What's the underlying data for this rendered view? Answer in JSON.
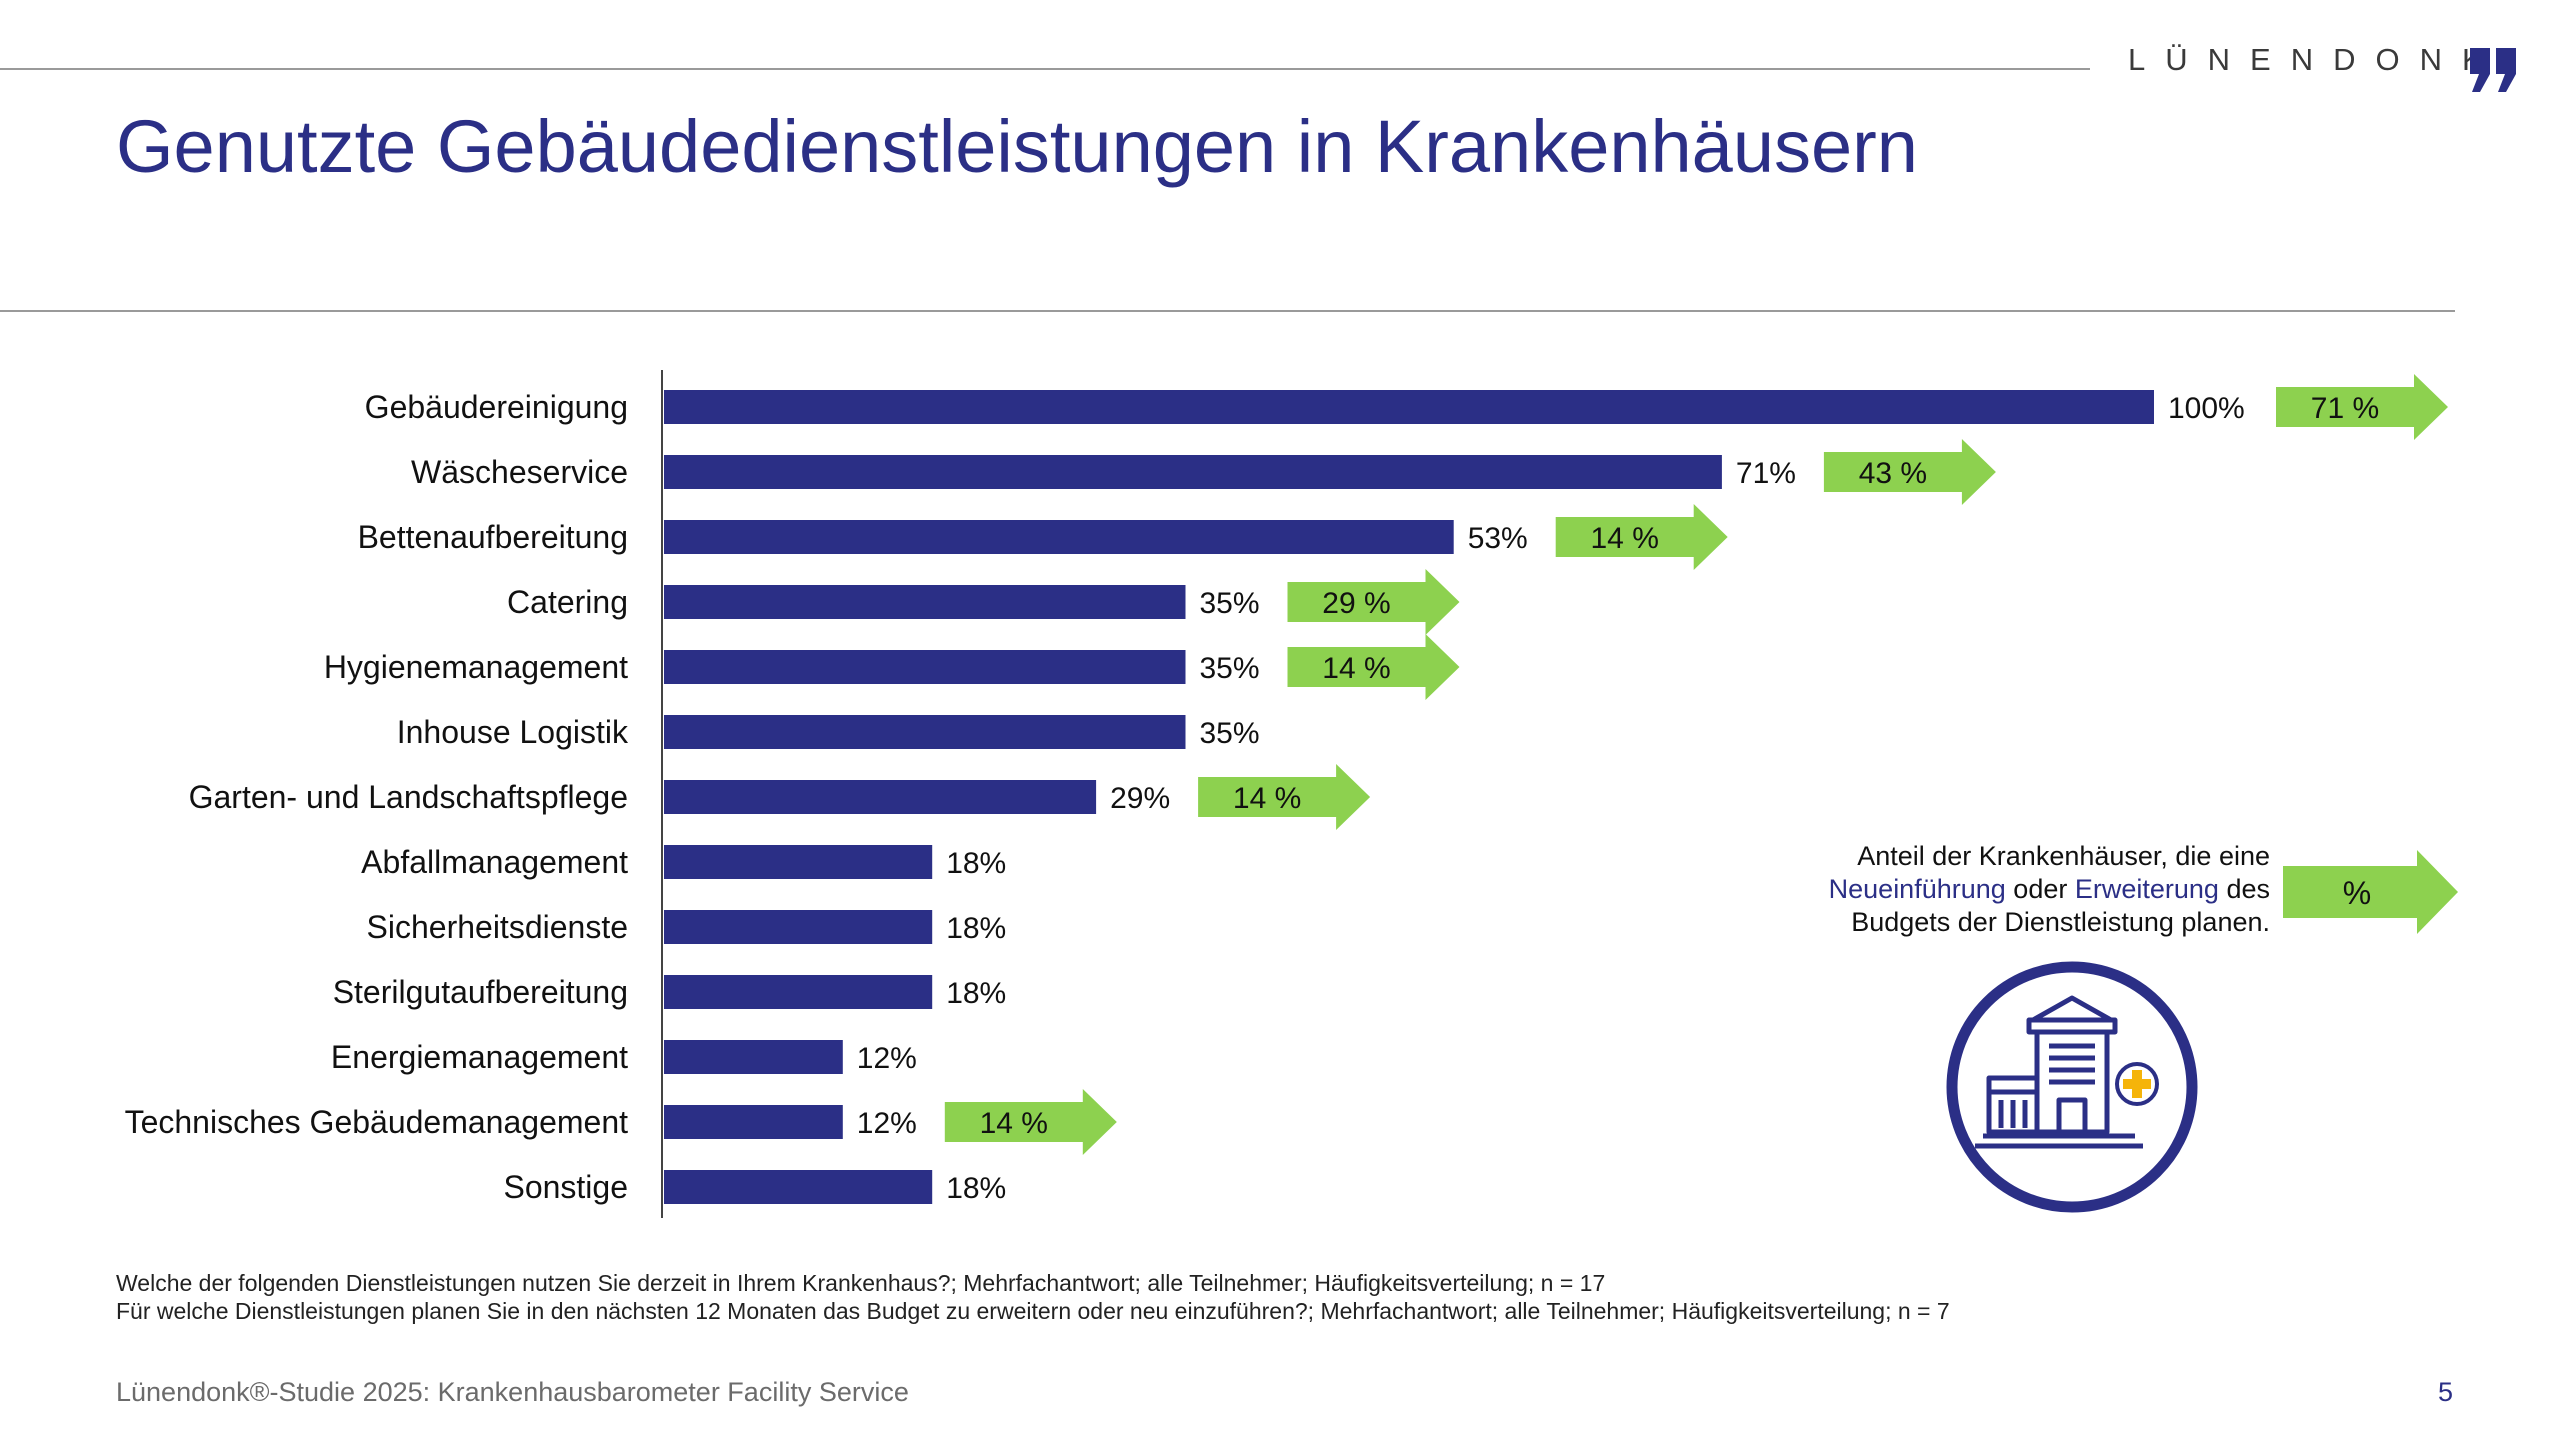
{
  "header": {
    "brand": "LÜNENDONK",
    "title": "Genutzte Gebäudedienstleistungen in Krankenhäusern"
  },
  "colors": {
    "bar": "#2b2f86",
    "arrow": "#8dd14f",
    "title": "#2b2f86"
  },
  "chart_data": {
    "type": "bar",
    "orientation": "horizontal",
    "categories": [
      "Gebäudereinigung",
      "Wäscheservice",
      "Bettenaufbereitung",
      "Catering",
      "Hygienemanagement",
      "Inhouse Logistik",
      "Garten- und Landschaftspflege",
      "Abfallmanagement",
      "Sicherheitsdienste",
      "Sterilgutaufbereitung",
      "Energiemanagement",
      "Technisches Gebäudemanagement",
      "Sonstige"
    ],
    "series": [
      {
        "name": "Genutzt",
        "values": [
          100,
          71,
          53,
          35,
          35,
          35,
          29,
          18,
          18,
          18,
          12,
          12,
          18
        ],
        "labels": [
          "100%",
          "71%",
          "53%",
          "35%",
          "35%",
          "35%",
          "29%",
          "18%",
          "18%",
          "18%",
          "12%",
          "12%",
          "18%"
        ]
      },
      {
        "name": "Geplante Neueinführung oder Erweiterung",
        "values": [
          71,
          43,
          14,
          29,
          14,
          null,
          14,
          null,
          null,
          null,
          null,
          14,
          null
        ],
        "labels": [
          "71 %",
          "43 %",
          "14 %",
          "29 %",
          "14 %",
          null,
          "14 %",
          null,
          null,
          null,
          null,
          "14 %",
          null
        ]
      }
    ],
    "xlim": [
      0,
      100
    ]
  },
  "legend": {
    "line1": "Anteil der Krankenhäuser, die eine",
    "hl1": "Neueinführung",
    "mid": "oder",
    "hl2": "Erweiterung",
    "tail": "des",
    "line3": "Budgets der Dienstleistung planen.",
    "arrow_label": "%"
  },
  "footnotes": {
    "q1": "Welche der folgenden Dienstleistungen nutzen Sie derzeit in Ihrem Krankenhaus?; Mehrfachantwort; alle Teilnehmer; Häufigkeitsverteilung; n = 17",
    "q2": "Für welche Dienstleistungen planen Sie in den nächsten 12 Monaten das Budget zu erweitern oder neu einzuführen?; Mehrfachantwort; alle Teilnehmer; Häufigkeitsverteilung; n = 7"
  },
  "footer": {
    "source": "Lünendonk®-Studie 2025: Krankenhausbarometer Facility Service",
    "page": "5"
  }
}
